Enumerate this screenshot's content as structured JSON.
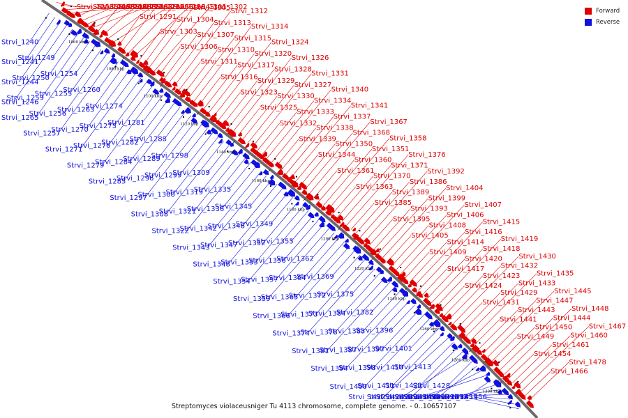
{
  "colors": {
    "forward": "#e00000",
    "reverse": "#1010e0",
    "axis": "#6b6b6b"
  },
  "legend": [
    {
      "name": "Forward",
      "color": "#e00000"
    },
    {
      "name": "Reverse",
      "color": "#1010e0"
    }
  ],
  "caption": "Streptomyces violaceusniger Tu 4113 chromosome, complete genome. - 0..10657107",
  "ticks": [
    "1060 kbp",
    "1080 kbp",
    "1100 kbp",
    "1120 kbp",
    "1140 kbp",
    "1160 kbp",
    "1180 kbp",
    "1200 kbp",
    "1220 kbp",
    "1240 kbp",
    "1260 kbp",
    "1280 kbp",
    "1300 kbp"
  ],
  "forward_labels": [
    "Strvi_1253",
    "Strvi_1266",
    "Strvi_1262",
    "Strvi_1277",
    "Strvi_1273",
    "Strvi_1280",
    "Strvi_1278",
    "Strvi_1287",
    "Strvi_1283",
    "Strvi_1292",
    "Strvi_1295",
    "Strvi_1293",
    "Strvi_1291",
    "Strvi_1290",
    "Strvi_1294",
    "Strvi_1301",
    "Strvi_1303",
    "Strvi_1304",
    "Strvi_1305",
    "Strvi_1302",
    "Strvi_1306",
    "Strvi_1307",
    "Strvi_1313",
    "Strvi_1312",
    "Strvi_1311",
    "Strvi_1310",
    "Strvi_1315",
    "Strvi_1314",
    "Strvi_1316",
    "Strvi_1317",
    "Strvi_1320",
    "Strvi_1324",
    "Strvi_1323",
    "Strvi_1329",
    "Strvi_1328",
    "Strvi_1326",
    "Strvi_1325",
    "Strvi_1330",
    "Strvi_1327",
    "Strvi_1331",
    "Strvi_1332",
    "Strvi_1333",
    "Strvi_1334",
    "Strvi_1340",
    "Strvi_1339",
    "Strvi_1338",
    "Strvi_1337",
    "Strvi_1341",
    "Strvi_1344",
    "Strvi_1350",
    "Strvi_1368",
    "Strvi_1367",
    "Strvi_1361",
    "Strvi_1360",
    "Strvi_1351",
    "Strvi_1358",
    "Strvi_1363",
    "Strvi_1370",
    "Strvi_1371",
    "Strvi_1376",
    "Strvi_1385",
    "Strvi_1389",
    "Strvi_1386",
    "Strvi_1392",
    "Strvi_1395",
    "Strvi_1393",
    "Strvi_1399",
    "Strvi_1404",
    "Strvi_1405",
    "Strvi_1408",
    "Strvi_1406",
    "Strvi_1407",
    "Strvi_1409",
    "Strvi_1414",
    "Strvi_1416",
    "Strvi_1415",
    "Strvi_1417",
    "Strvi_1420",
    "Strvi_1418",
    "Strvi_1419",
    "Strvi_1424",
    "Strvi_1423",
    "Strvi_1432",
    "Strvi_1430",
    "Strvi_1431",
    "Strvi_1429",
    "Strvi_1433",
    "Strvi_1435",
    "Strvi_1441",
    "Strvi_1443",
    "Strvi_1447",
    "Strvi_1445",
    "Strvi_1449",
    "Strvi_1450",
    "Strvi_1444",
    "Strvi_1448",
    "Strvi_1454",
    "Strvi_1461",
    "Strvi_1460",
    "Strvi_1467",
    "Strvi_1466",
    "Strvi_1478"
  ],
  "reverse_labels": [
    "Strvi_1240",
    "Strvi_1241",
    "Strvi_1244",
    "Strvi_1246",
    "Strvi_1249",
    "Strvi_1250",
    "Strvi_1259",
    "Strvi_1265",
    "Strvi_1254",
    "Strvi_1255",
    "Strvi_1256",
    "Strvi_1257",
    "Strvi_1260",
    "Strvi_1263",
    "Strvi_1270",
    "Strvi_1271",
    "Strvi_1274",
    "Strvi_1275",
    "Strvi_1276",
    "Strvi_1279",
    "Strvi_1281",
    "Strvi_1282",
    "Strvi_1284",
    "Strvi_1285",
    "Strvi_1288",
    "Strvi_1289",
    "Strvi_1296",
    "Strvi_1297",
    "Strvi_1298",
    "Strvi_1299",
    "Strvi_1300",
    "Strvi_1308",
    "Strvi_1309",
    "Strvi_1319",
    "Strvi_1321",
    "Strvi_1322",
    "Strvi_1335",
    "Strvi_1336",
    "Strvi_1342",
    "Strvi_1343",
    "Strvi_1345",
    "Strvi_1346",
    "Strvi_1347",
    "Strvi_1348",
    "Strvi_1349",
    "Strvi_1352",
    "Strvi_1353",
    "Strvi_1354",
    "Strvi_1355",
    "Strvi_1356",
    "Strvi_1357",
    "Strvi_1359",
    "Strvi_1362",
    "Strvi_1364",
    "Strvi_1365",
    "Strvi_1366",
    "Strvi_1369",
    "Strvi_1372",
    "Strvi_1373",
    "Strvi_1374",
    "Strvi_1375",
    "Strvi_1384",
    "Strvi_1378",
    "Strvi_1381",
    "Strvi_1382",
    "Strvi_1383",
    "Strvi_1387",
    "Strvi_1394",
    "Strvi_1396",
    "Strvi_1397",
    "Strvi_1398",
    "Strvi_1400",
    "Strvi_1401",
    "Strvi_1410",
    "Strvi_1411",
    "Strvi_1412",
    "Strvi_1413",
    "Strvi_1421",
    "Strvi_1422",
    "Strvi_1426",
    "Strvi_1428",
    "Strvi_1440",
    "Strvi_1434",
    "Strvi_1436",
    "Strvi_1438",
    "Strvi_1427",
    "Strvi_1442",
    "Strvi_1439",
    "Strvi_1456",
    "Strvi_1455",
    "Strvi_1472"
  ]
}
